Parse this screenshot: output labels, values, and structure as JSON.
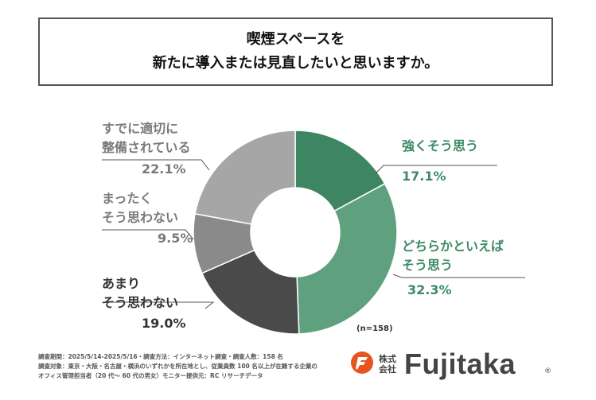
{
  "title": {
    "line1": "喫煙スペースを",
    "line2": "新たに導入または見直したいと思いますか。"
  },
  "chart_data": {
    "type": "donut",
    "n_label": "(n=158)",
    "slices": [
      {
        "label_lines": [
          "強くそう思う"
        ],
        "value": 17.1,
        "value_label": "17.1%",
        "color": "#3d8661"
      },
      {
        "label_lines": [
          "どちらかといえば",
          "そう思う"
        ],
        "value": 32.3,
        "value_label": "32.3%",
        "color": "#5fa07f"
      },
      {
        "label_lines": [
          "あまり",
          "そう思わない"
        ],
        "value": 19.0,
        "value_label": "19.0%",
        "color": "#4a4a4a"
      },
      {
        "label_lines": [
          "まったく",
          "そう思わない"
        ],
        "value": 9.5,
        "value_label": "9.5%",
        "color": "#8a8a8a"
      },
      {
        "label_lines": [
          "すでに適切に",
          "整備されている"
        ],
        "value": 22.1,
        "value_label": "22.1%",
        "color": "#a6a6a6"
      }
    ]
  },
  "footer": {
    "line1": "調査期間：2025/5/14-2025/5/16・調査方法：インターネット調査・調査人数：158 名",
    "line2": "調査対象：東京・大阪・名古屋・横浜のいずれかを所在地とし、従業員数 100 名以上が在籍する企業の",
    "line3": "オフィス管理担当者（20 代～ 60 代の男女）モニター提供元：RC リサーチデータ"
  },
  "logo": {
    "jp": "株式会社",
    "name": "Fujitaka",
    "mark": "®",
    "color": "#e8531f"
  }
}
